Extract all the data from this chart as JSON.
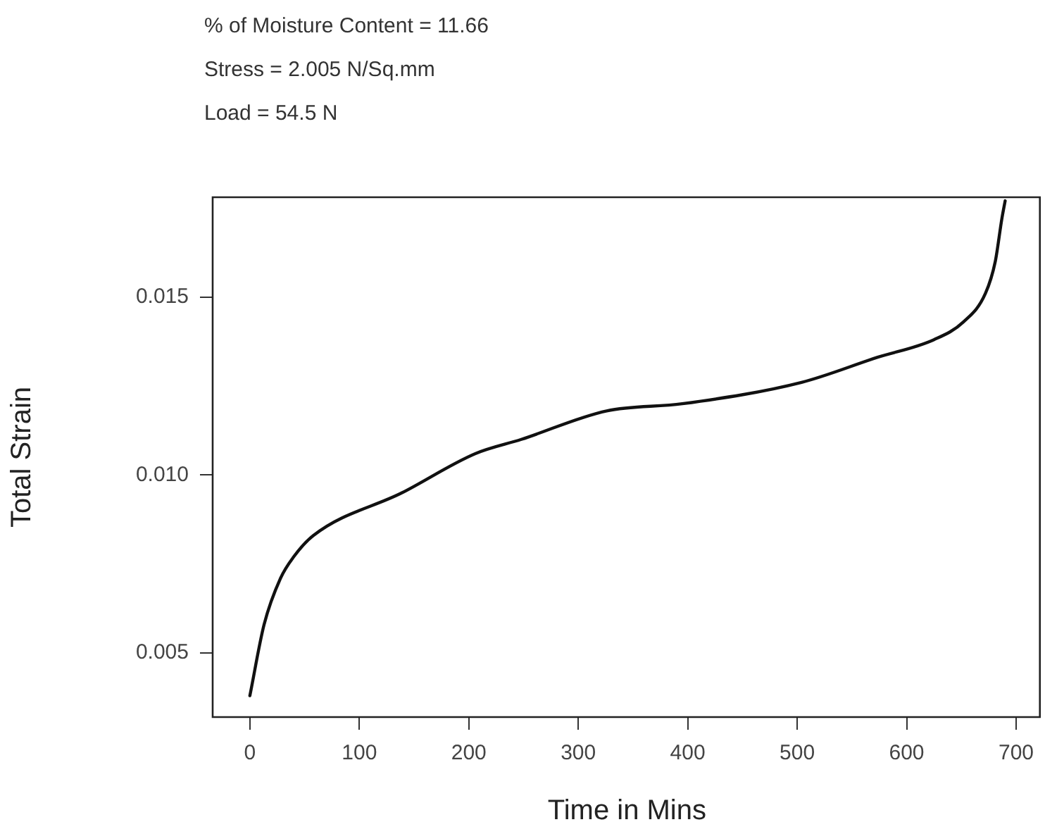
{
  "chart_data": {
    "type": "line",
    "xlabel": "Time in Mins",
    "ylabel": "Total Strain",
    "annotations": [
      "% of Moisture Content = 11.66",
      "Stress = 2.005 N/Sq.mm",
      "Load = 54.5 N"
    ],
    "x": [
      0,
      13,
      28,
      40,
      58,
      139,
      206,
      248,
      326,
      395,
      504,
      573,
      625,
      652,
      672,
      681,
      687,
      690
    ],
    "values": [
      0.0038,
      0.0058,
      0.0071,
      0.0077,
      0.0083,
      0.0095,
      0.0106,
      0.011,
      0.0118,
      0.012,
      0.0126,
      0.0133,
      0.0138,
      0.0143,
      0.0151,
      0.016,
      0.0172,
      0.0177
    ],
    "color": "#111111",
    "marker": "none",
    "line_style": "solid",
    "xlim": [
      -34,
      723
    ],
    "ylim": [
      0.0032,
      0.0178
    ],
    "xticks": [
      0,
      100,
      200,
      300,
      400,
      500,
      600,
      700
    ],
    "yticks": [
      0.005,
      {
        "value": 0.01,
        "label": "0.010"
      },
      0.015
    ]
  }
}
